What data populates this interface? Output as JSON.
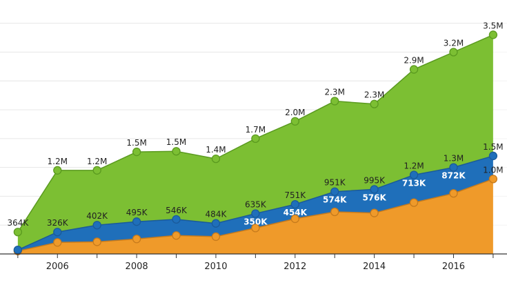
{
  "chart_data": {
    "type": "area",
    "title": "",
    "xlabel": "",
    "ylabel": "",
    "stacked": true,
    "grid": true,
    "x": [
      2005,
      2006,
      2007,
      2008,
      2009,
      2010,
      2011,
      2012,
      2013,
      2014,
      2015,
      2016,
      2017
    ],
    "x_ticks": [
      "2006",
      "2008",
      "2010",
      "2012",
      "2014",
      "2016"
    ],
    "series": [
      {
        "color": "#ef9a2a",
        "line_color": "#c67a1c",
        "values": [
          0.05,
          0.2,
          0.21,
          0.26,
          0.32,
          0.3,
          0.45,
          0.61,
          0.73,
          0.71,
          0.89,
          1.05,
          1.3
        ],
        "labels": [
          "",
          "",
          "",
          "",
          "",
          "",
          "",
          "",
          "",
          "",
          "",
          "",
          "1.0M"
        ]
      },
      {
        "color": "#1f6fba",
        "line_color": "#1a5a9a",
        "values": [
          0.07,
          0.38,
          0.5,
          0.56,
          0.6,
          0.53,
          0.7,
          0.86,
          1.08,
          1.12,
          1.37,
          1.5,
          1.7
        ],
        "labels": [
          "",
          "326K",
          "402K",
          "495K",
          "546K",
          "484K",
          "635K",
          "751K",
          "951K",
          "995K",
          "1.2M",
          "1.3M",
          "1.5M"
        ],
        "inner_labels": [
          "",
          "",
          "",
          "",
          "",
          "",
          "350K",
          "454K",
          "574K",
          "576K",
          "713K",
          "872K",
          ""
        ]
      },
      {
        "color": "#7cbf33",
        "line_color": "#5a9a1f",
        "values": [
          0.38,
          1.45,
          1.45,
          1.77,
          1.78,
          1.65,
          2.0,
          2.3,
          2.65,
          2.6,
          3.2,
          3.5,
          3.8
        ],
        "labels": [
          "364K",
          "1.2M",
          "1.2M",
          "1.5M",
          "1.5M",
          "1.4M",
          "1.7M",
          "2.0M",
          "2.3M",
          "2.3M",
          "2.9M",
          "3.2M",
          "3.5M"
        ]
      }
    ],
    "ylim": [
      0,
      4.2
    ],
    "x_range": [
      2004.55,
      2017.35
    ]
  }
}
